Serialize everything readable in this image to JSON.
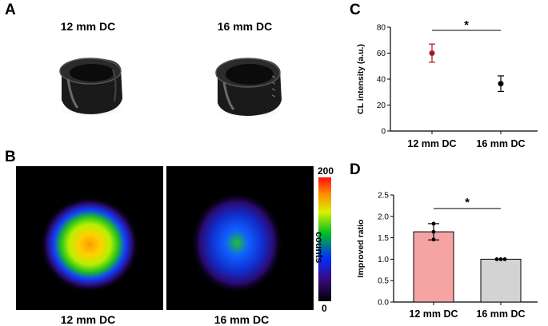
{
  "panels": {
    "a": {
      "letter": "A",
      "captions": [
        "12 mm DC",
        "16 mm DC"
      ]
    },
    "b": {
      "letter": "B",
      "captions": [
        "12 mm DC",
        "16 mm DC"
      ],
      "colorbar": {
        "max_label": "200",
        "min_label": "0",
        "label": "counts"
      }
    },
    "c": {
      "letter": "C"
    },
    "d": {
      "letter": "D"
    }
  },
  "chart_data": [
    {
      "panel": "C",
      "type": "scatter",
      "categories": [
        "12 mm DC",
        "16 mm DC"
      ],
      "values": [
        60,
        36.5
      ],
      "error": [
        7,
        6
      ],
      "point_colors": [
        "#a31b1b",
        "#000000"
      ],
      "ylabel": "CL intensity (a.u.)",
      "ylim": [
        0,
        80
      ],
      "yticks": [
        0,
        20,
        40,
        60,
        80
      ],
      "significance": "*"
    },
    {
      "panel": "D",
      "type": "bar",
      "categories": [
        "12 mm DC",
        "16 mm DC"
      ],
      "values": [
        1.64,
        1.0
      ],
      "error": [
        0.19,
        0
      ],
      "bar_colors": [
        "#f6a3a3",
        "#d3d3d3"
      ],
      "replicates": [
        [
          1.83,
          1.64,
          1.46
        ],
        [
          1.0,
          1.0,
          1.0
        ]
      ],
      "ylabel": "Improved ratio",
      "ylim": [
        0,
        2.5
      ],
      "yticks": [
        "0.0",
        "0.5",
        "1.0",
        "1.5",
        "2.0",
        "2.5"
      ],
      "significance": "*"
    }
  ]
}
